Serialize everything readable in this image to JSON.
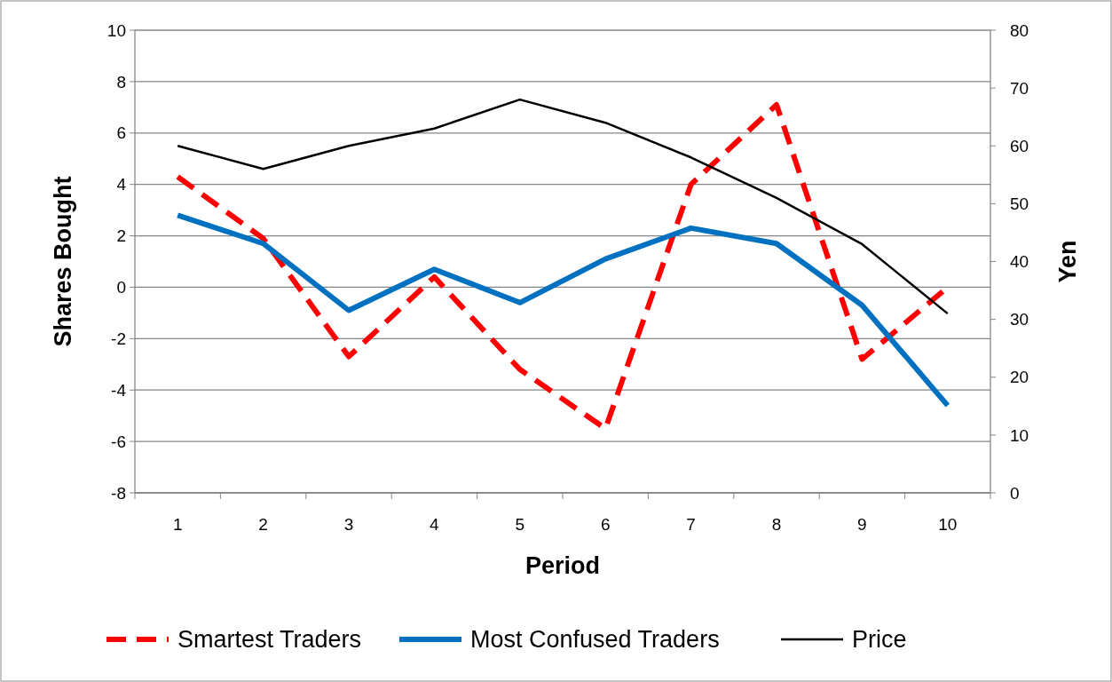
{
  "chart_data": {
    "type": "line",
    "xlabel": "Period",
    "ylabel": "Shares Bought",
    "y2label": "Yen",
    "categories": [
      "1",
      "2",
      "3",
      "4",
      "5",
      "6",
      "7",
      "8",
      "9",
      "10"
    ],
    "series": [
      {
        "name": "Smartest Traders",
        "color": "#ff0000",
        "line_style": "dashed",
        "values": [
          4.3,
          1.9,
          -2.7,
          0.4,
          -3.2,
          -5.5,
          4.0,
          7.1,
          -2.8,
          0.0
        ]
      },
      {
        "name": "Most Confused Traders",
        "color": "#0070c0",
        "line_style": "solid",
        "values": [
          2.8,
          1.7,
          -0.9,
          0.7,
          -0.6,
          1.1,
          2.3,
          1.7,
          -0.7,
          -4.6
        ]
      },
      {
        "name": "Price",
        "color": "#000000",
        "line_style": "solid",
        "axis": "y2",
        "values": [
          60,
          56,
          60,
          63,
          68,
          64,
          58,
          51,
          43,
          31
        ]
      }
    ],
    "ylim": [
      -8,
      10
    ],
    "yticks": [
      -8,
      -6,
      -4,
      -2,
      0,
      2,
      4,
      6,
      8,
      10
    ],
    "y2lim": [
      0,
      80
    ],
    "y2ticks": [
      0,
      10,
      20,
      30,
      40,
      50,
      60,
      70,
      80
    ],
    "grid": "y",
    "legend": "bottom",
    "marker": "none"
  }
}
